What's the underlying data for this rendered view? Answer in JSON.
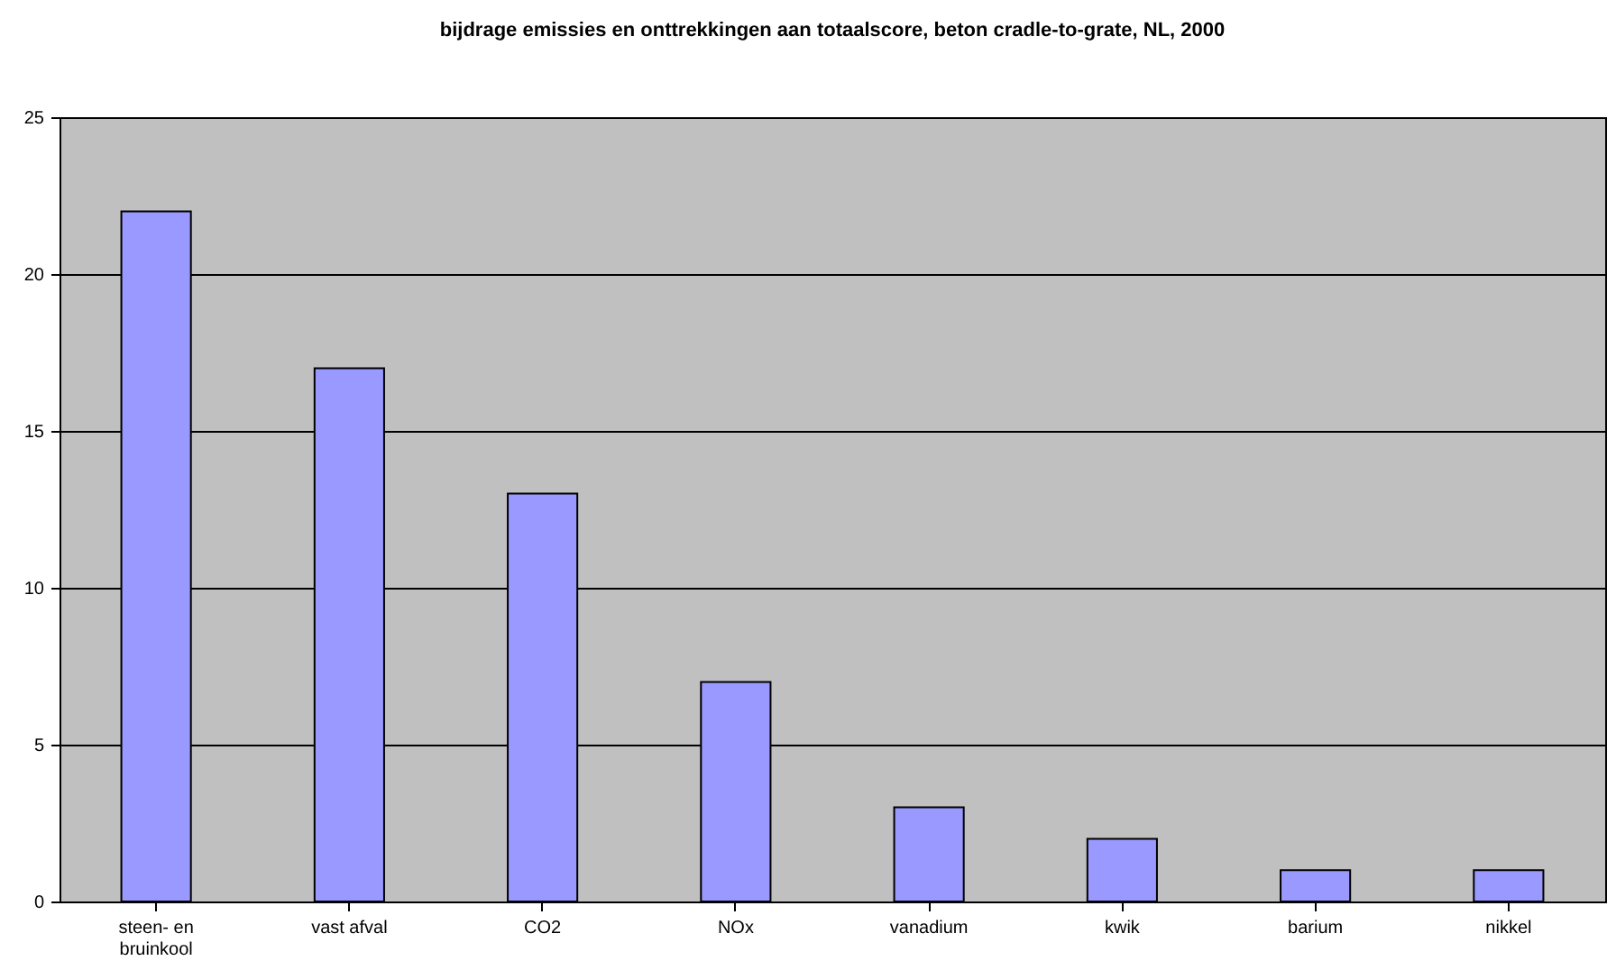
{
  "chart_data": {
    "type": "bar",
    "title": "bijdrage emissies en onttrekkingen aan totaalscore, beton cradle-to-grate, NL, 2000",
    "categories": [
      "steen- en bruinkool",
      "vast afval",
      "CO2",
      "NOx",
      "vanadium",
      "kwik",
      "barium",
      "nikkel"
    ],
    "values": [
      22,
      17,
      13,
      7,
      3,
      2,
      1,
      1
    ],
    "color": "#9999ff",
    "ylim": [
      0,
      25
    ],
    "yticks": [
      0,
      5,
      10,
      15,
      20,
      25
    ],
    "grid": "y",
    "legend": false
  }
}
